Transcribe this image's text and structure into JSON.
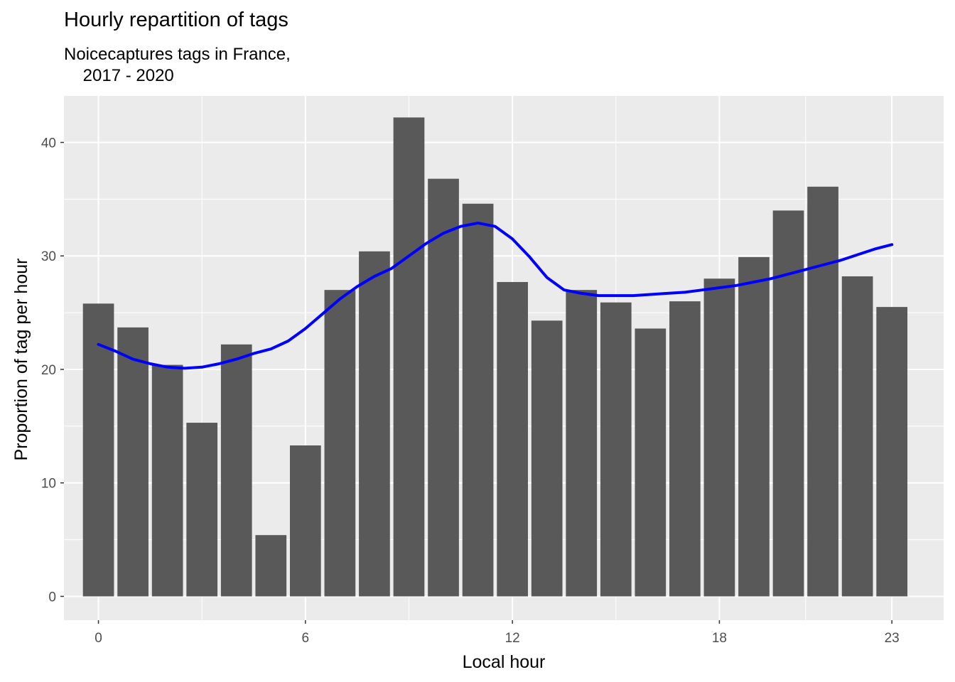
{
  "chart_data": {
    "type": "bar",
    "title": "Hourly repartition of tags",
    "subtitle": "Noicecaptures tags in France,\n    2017 - 2020",
    "xlabel": "Local hour",
    "ylabel": "Proportion of tag per hour",
    "x": [
      0,
      1,
      2,
      3,
      4,
      5,
      6,
      7,
      8,
      9,
      10,
      11,
      12,
      13,
      14,
      15,
      16,
      17,
      18,
      19,
      20,
      21,
      22,
      23
    ],
    "values": [
      25.8,
      23.7,
      20.4,
      15.3,
      22.2,
      5.4,
      13.3,
      27.0,
      30.4,
      42.2,
      36.8,
      34.6,
      27.7,
      24.3,
      27.0,
      25.9,
      23.6,
      26.0,
      28.0,
      29.9,
      34.0,
      36.1,
      28.2,
      25.5
    ],
    "smooth": {
      "name": "smoothed trend",
      "color": "#0000ff",
      "x": [
        0,
        0.5,
        1,
        1.5,
        2,
        2.5,
        3,
        3.5,
        4,
        4.5,
        5,
        5.5,
        6,
        6.5,
        7,
        7.5,
        8,
        8.5,
        9,
        9.5,
        10,
        10.5,
        11,
        11.5,
        12,
        12.5,
        13,
        13.5,
        14,
        14.5,
        15,
        15.5,
        16,
        16.5,
        17,
        17.5,
        18,
        18.5,
        19,
        19.5,
        20,
        20.5,
        21,
        21.5,
        22,
        22.5,
        23
      ],
      "values": [
        22.2,
        21.6,
        20.9,
        20.5,
        20.2,
        20.1,
        20.2,
        20.5,
        20.9,
        21.4,
        21.8,
        22.5,
        23.6,
        24.9,
        26.2,
        27.3,
        28.2,
        28.9,
        30.0,
        31.1,
        32.0,
        32.6,
        32.9,
        32.6,
        31.5,
        29.9,
        28.1,
        27.0,
        26.7,
        26.5,
        26.5,
        26.5,
        26.6,
        26.7,
        26.8,
        27.0,
        27.2,
        27.4,
        27.7,
        28.0,
        28.4,
        28.8,
        29.2,
        29.6,
        30.1,
        30.6,
        31.0
      ]
    },
    "xticks": [
      0,
      6,
      12,
      18,
      23
    ],
    "yticks": [
      0,
      10,
      20,
      30,
      40
    ],
    "xlim": [
      -1,
      24.5
    ],
    "ylim": [
      -2.1,
      44.1
    ],
    "grid": true,
    "bar_color": "#595959",
    "panel_color": "#ebebeb",
    "grid_color": "#ffffff"
  }
}
